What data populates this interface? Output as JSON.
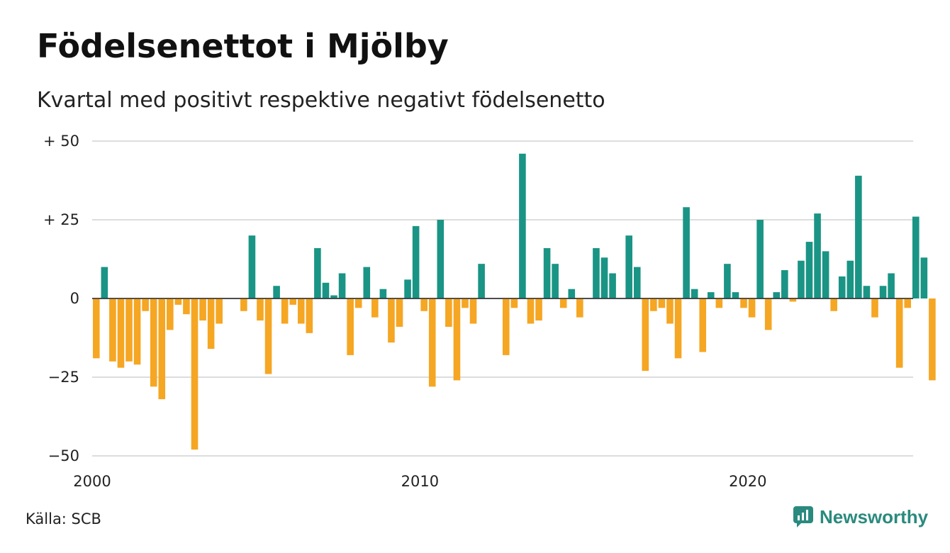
{
  "title": "Födelsenettot i Mjölby",
  "subtitle": "Kvartal med positivt respektive negativt födelsenetto",
  "source": "Källa: SCB",
  "brand": "Newsworthy",
  "colors": {
    "positive": "#1a9485",
    "negative": "#f5a623",
    "grid": "#dddddd",
    "zero": "#333333"
  },
  "chart_data": {
    "type": "bar",
    "title": "Födelsenettot i Mjölby",
    "subtitle": "Kvartal med positivt respektive negativt födelsenetto",
    "xlabel": "",
    "ylabel": "",
    "ylim": [
      -50,
      50
    ],
    "y_ticks": [
      {
        "value": 50,
        "label": "+ 50"
      },
      {
        "value": 25,
        "label": "+ 25"
      },
      {
        "value": 0,
        "label": "0"
      },
      {
        "value": -25,
        "label": "−25"
      },
      {
        "value": -50,
        "label": "−50"
      }
    ],
    "x_tick_labels": [
      "2000",
      "2010",
      "2020"
    ],
    "start_year": 2000,
    "grid": true,
    "legend": "none",
    "values": [
      -19,
      10,
      -20,
      -22,
      -20,
      -21,
      -4,
      -28,
      -32,
      -10,
      -2,
      -5,
      -48,
      -7,
      -16,
      -8,
      0,
      0,
      -4,
      20,
      -7,
      -24,
      4,
      -8,
      -2,
      -8,
      -11,
      16,
      5,
      1,
      8,
      -18,
      -3,
      10,
      -6,
      3,
      -14,
      -9,
      6,
      23,
      -4,
      -28,
      25,
      -9,
      -26,
      -3,
      -8,
      11,
      0,
      0,
      -18,
      -3,
      46,
      -8,
      -7,
      16,
      11,
      -3,
      3,
      -6,
      0,
      16,
      13,
      8,
      0,
      20,
      10,
      -23,
      -4,
      -3,
      -8,
      -19,
      29,
      3,
      -17,
      2,
      -3,
      11,
      2,
      -3,
      -6,
      25,
      -10,
      2,
      9,
      -1,
      12,
      18,
      27,
      15,
      -4,
      7,
      12,
      39,
      4,
      -6,
      4,
      8,
      -22,
      -3,
      26,
      13,
      -26
    ]
  }
}
